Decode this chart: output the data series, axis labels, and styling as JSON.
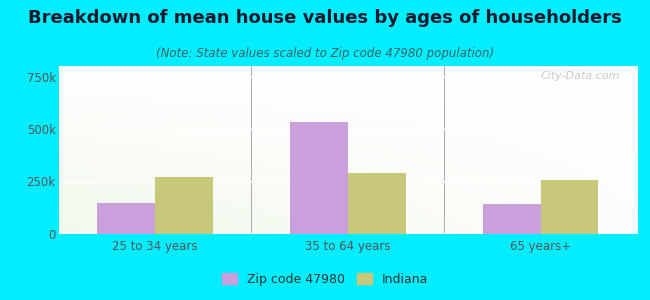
{
  "title": "Breakdown of mean house values by ages of householders",
  "subtitle": "(Note: State values scaled to Zip code 47980 population)",
  "categories": [
    "25 to 34 years",
    "35 to 64 years",
    "65 years+"
  ],
  "zip_values": [
    150000,
    535000,
    145000
  ],
  "state_values": [
    270000,
    290000,
    255000
  ],
  "ylim": [
    0,
    800000
  ],
  "yticks": [
    0,
    250000,
    500000,
    750000
  ],
  "ytick_labels": [
    "0",
    "250k",
    "500k",
    "750k"
  ],
  "zip_color": "#c9a0dc",
  "state_color": "#c8c87a",
  "background_color": "#00eeff",
  "legend_zip": "Zip code 47980",
  "legend_state": "Indiana",
  "bar_width": 0.3,
  "title_fontsize": 13,
  "subtitle_fontsize": 8.5,
  "tick_fontsize": 8.5,
  "legend_fontsize": 9,
  "watermark": "City-Data.com"
}
